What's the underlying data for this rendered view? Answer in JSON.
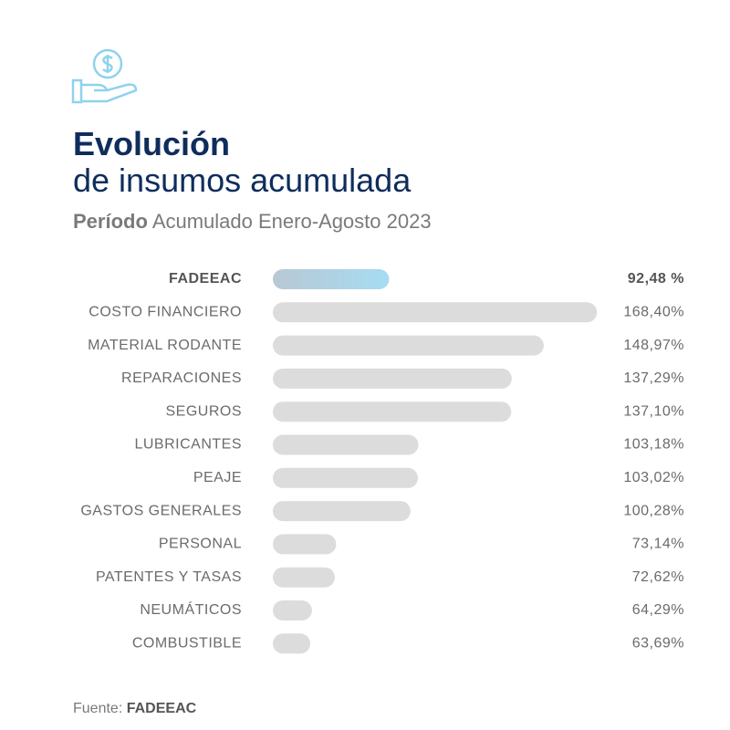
{
  "chart_data": {
    "type": "bar",
    "orientation": "horizontal",
    "title": [
      "Evolución",
      "de insumos acumulada"
    ],
    "subtitle": {
      "bold": "Período",
      "text": "Acumulado Enero-Agosto 2023"
    },
    "source": {
      "label": "Fuente:",
      "text": "FADEEAC"
    },
    "categories": [
      "FADEEAC",
      "COSTO FINANCIERO",
      "MATERIAL RODANTE",
      "REPARACIONES",
      "SEGUROS",
      "LUBRICANTES",
      "PEAJE",
      "GASTOS GENERALES",
      "PERSONAL",
      "PATENTES Y TASAS",
      "NEUMÁTICOS",
      "COMBUSTIBLE"
    ],
    "values": [
      92.48,
      168.4,
      148.97,
      137.29,
      137.1,
      103.18,
      103.02,
      100.28,
      73.14,
      72.62,
      64.29,
      63.69
    ],
    "value_labels": [
      "92,48 %",
      "168,40%",
      "148,97%",
      "137,29%",
      "137,10%",
      "103,18%",
      "103,02%",
      "100,28%",
      "73,14%",
      "72,62%",
      "64,29%",
      "63,69%"
    ],
    "colors": [
      "#a6dcf2",
      "#dcdcdc",
      "#dcdcdc",
      "#dcdcdc",
      "#dcdcdc",
      "#dcdcdc",
      "#dcdcdc",
      "#dcdcdc",
      "#dcdcdc",
      "#dcdcdc",
      "#dcdcdc",
      "#dcdcdc"
    ],
    "xlim": [
      50,
      170
    ]
  }
}
